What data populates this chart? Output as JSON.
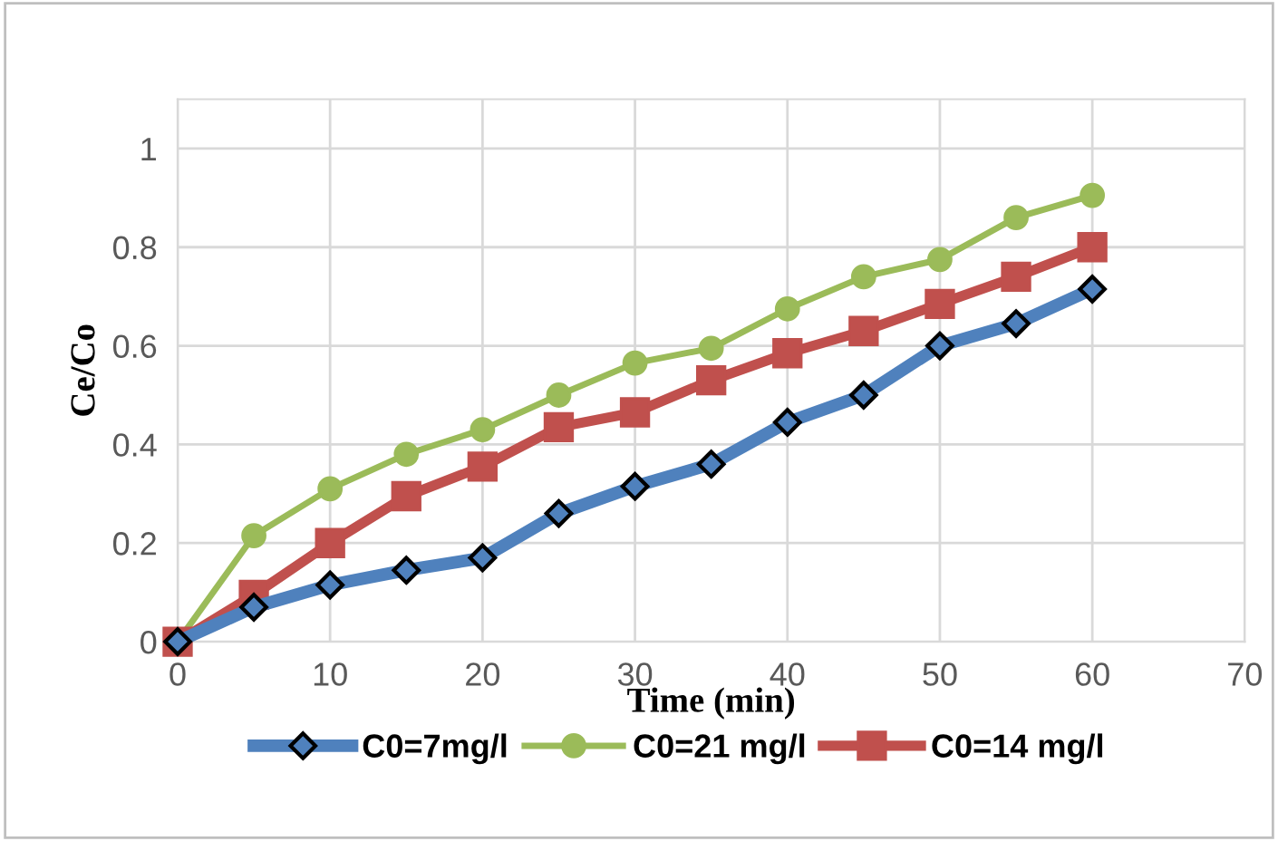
{
  "chart_data": {
    "type": "line",
    "xlabel": "Time (min)",
    "ylabel": "Ce/Co",
    "x": [
      0,
      5,
      10,
      15,
      20,
      25,
      30,
      35,
      40,
      45,
      50,
      55,
      60
    ],
    "series": [
      {
        "name": "C0=7mg/l",
        "color": "#4f81bd",
        "marker": "diamond",
        "values": [
          0,
          0.07,
          0.115,
          0.145,
          0.17,
          0.26,
          0.315,
          0.36,
          0.445,
          0.5,
          0.6,
          0.645,
          0.715
        ]
      },
      {
        "name": "C0=21 mg/l",
        "color": "#9bbb59",
        "marker": "circle",
        "values": [
          0,
          0.215,
          0.31,
          0.38,
          0.43,
          0.5,
          0.565,
          0.595,
          0.675,
          0.74,
          0.775,
          0.86,
          0.905
        ]
      },
      {
        "name": "C0=14 mg/l",
        "color": "#c0504d",
        "marker": "square",
        "values": [
          0,
          0.095,
          0.2,
          0.295,
          0.355,
          0.435,
          0.465,
          0.53,
          0.585,
          0.63,
          0.685,
          0.74,
          0.8
        ]
      }
    ],
    "xlim": [
      0,
      70
    ],
    "xticks": [
      0,
      10,
      20,
      30,
      40,
      50,
      60,
      70
    ],
    "ylim": [
      0,
      1.1
    ],
    "yticks": [
      0,
      0.2,
      0.4,
      0.6,
      0.8,
      1
    ],
    "grid": true,
    "legend": "bottom"
  }
}
